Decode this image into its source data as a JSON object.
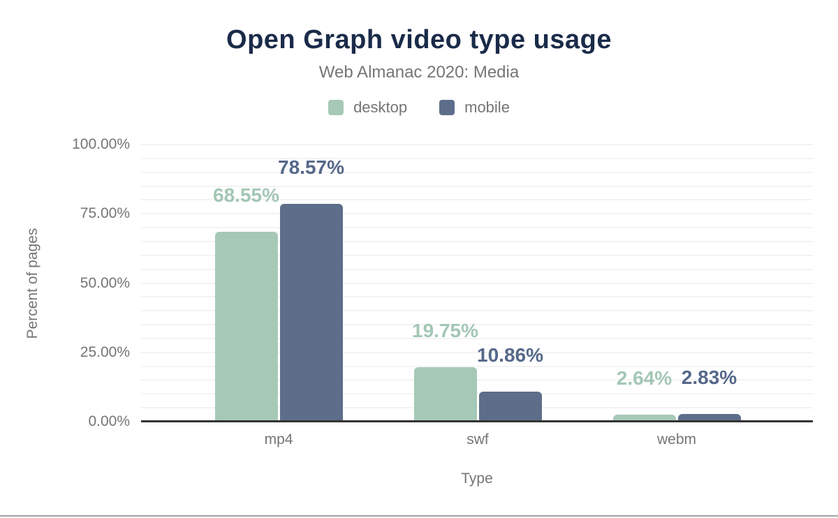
{
  "chart": {
    "title": "Open Graph video type usage",
    "subtitle": "Web Almanac 2020: Media",
    "xlabel": "Type",
    "ylabel": "Percent of pages"
  },
  "chart_data": {
    "type": "bar",
    "title": "Open Graph video type usage",
    "subtitle": "Web Almanac 2020: Media",
    "xlabel": "Type",
    "ylabel": "Percent of pages",
    "categories": [
      "mp4",
      "swf",
      "webm"
    ],
    "series": [
      {
        "name": "desktop",
        "color": "#a6c9b7",
        "label_color": "#a3c7b4",
        "values": [
          68.55,
          19.75,
          2.64
        ]
      },
      {
        "name": "mobile",
        "color": "#5c6e8a",
        "label_color": "#56688a",
        "values": [
          78.57,
          10.86,
          2.83
        ]
      }
    ],
    "value_labels": [
      [
        "68.55%",
        "19.75%",
        "2.64%"
      ],
      [
        "78.57%",
        "10.86%",
        "2.83%"
      ]
    ],
    "ylim": [
      0,
      100
    ],
    "ytick_values": [
      0,
      25,
      50,
      75,
      100
    ],
    "ytick_labels": [
      "0.00%",
      "25.00%",
      "50.00%",
      "75.00%",
      "100.00%"
    ],
    "minor_grid_step": 5,
    "grid": true,
    "legend_position": "top"
  },
  "footer": {
    "divider_color": "#a2a2a2"
  }
}
